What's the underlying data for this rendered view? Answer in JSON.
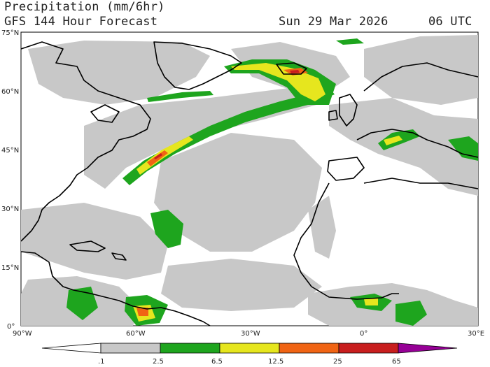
{
  "header": {
    "title": "Precipitation (mm/6hr)",
    "model": "GFS 144 Hour Forecast",
    "date": "Sun 29 Mar 2026",
    "time": "06 UTC"
  },
  "axes": {
    "lat_labels": [
      "75°N",
      "60°N",
      "45°N",
      "30°N",
      "15°N",
      "0°"
    ],
    "lon_labels": [
      "90°W",
      "60°W",
      "30°W",
      "0°",
      "30°E"
    ]
  },
  "legend": {
    "labels": [
      ".1",
      "2.5",
      "6.5",
      "12.5",
      "25",
      "65"
    ],
    "colors": {
      "light": "#c8c8c8",
      "moderate": "#1ea51e",
      "heavy": "#e6e61e",
      "very_heavy": "#f06414",
      "intense": "#c81e1e",
      "extreme": "#960096"
    }
  }
}
